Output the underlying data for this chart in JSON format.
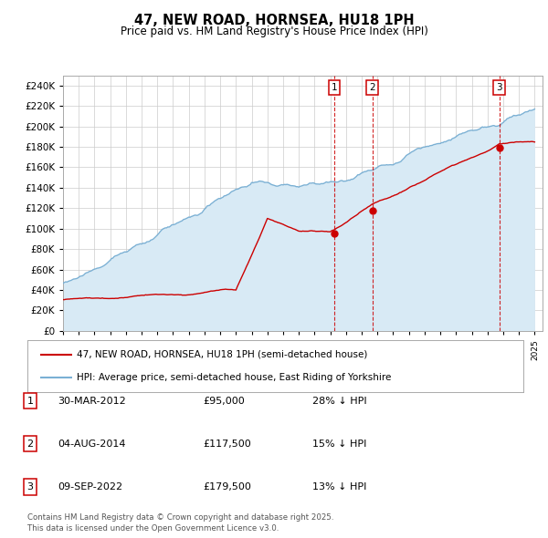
{
  "title": "47, NEW ROAD, HORNSEA, HU18 1PH",
  "subtitle": "Price paid vs. HM Land Registry's House Price Index (HPI)",
  "ylim": [
    0,
    250000
  ],
  "yticks": [
    0,
    20000,
    40000,
    60000,
    80000,
    100000,
    120000,
    140000,
    160000,
    180000,
    200000,
    220000,
    240000
  ],
  "sale_prices": [
    95000,
    117500,
    179500
  ],
  "sale_labels": [
    "1",
    "2",
    "3"
  ],
  "legend_property": "47, NEW ROAD, HORNSEA, HU18 1PH (semi-detached house)",
  "legend_hpi": "HPI: Average price, semi-detached house, East Riding of Yorkshire",
  "property_line_color": "#cc0000",
  "hpi_line_color": "#7ab0d4",
  "hpi_fill_color": "#d8eaf5",
  "sale_marker_color": "#cc0000",
  "vline_color": "#cc0000",
  "grid_color": "#cccccc",
  "bg_color": "#ffffff",
  "table_entries": [
    {
      "num": "1",
      "date": "30-MAR-2012",
      "price": "£95,000",
      "hpi": "28% ↓ HPI"
    },
    {
      "num": "2",
      "date": "04-AUG-2014",
      "price": "£117,500",
      "hpi": "15% ↓ HPI"
    },
    {
      "num": "3",
      "date": "09-SEP-2022",
      "price": "£179,500",
      "hpi": "13% ↓ HPI"
    }
  ],
  "footnote": "Contains HM Land Registry data © Crown copyright and database right 2025.\nThis data is licensed under the Open Government Licence v3.0.",
  "x_start_year": 1995,
  "x_end_year": 2025
}
